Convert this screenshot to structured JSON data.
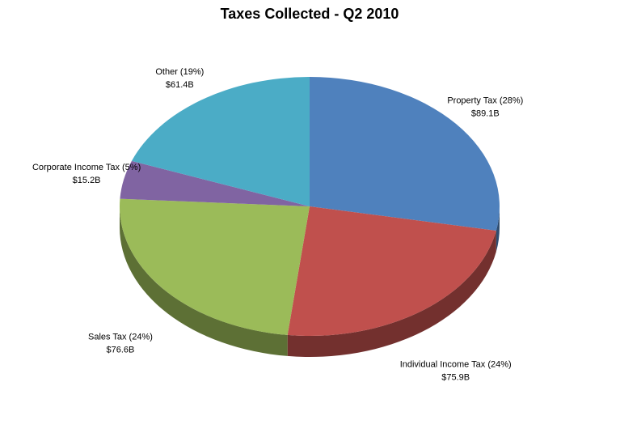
{
  "chart_data": {
    "type": "pie3d",
    "title": "Taxes Collected - Q2 2010",
    "categories": [
      "Property Tax (28%)",
      "Individual Income Tax (24%)",
      "Sales Tax (24%)",
      "Corporate Income Tax (5%)",
      "Other (19%)"
    ],
    "values": [
      89.1,
      75.9,
      76.6,
      15.2,
      61.4
    ],
    "value_labels": [
      "$89.1B",
      "$75.9B",
      "$76.6B",
      "$15.2B",
      "$61.4B"
    ],
    "colors": [
      "#4f81bd",
      "#c0504d",
      "#9bbb59",
      "#8064a2",
      "#4bacc6"
    ]
  }
}
